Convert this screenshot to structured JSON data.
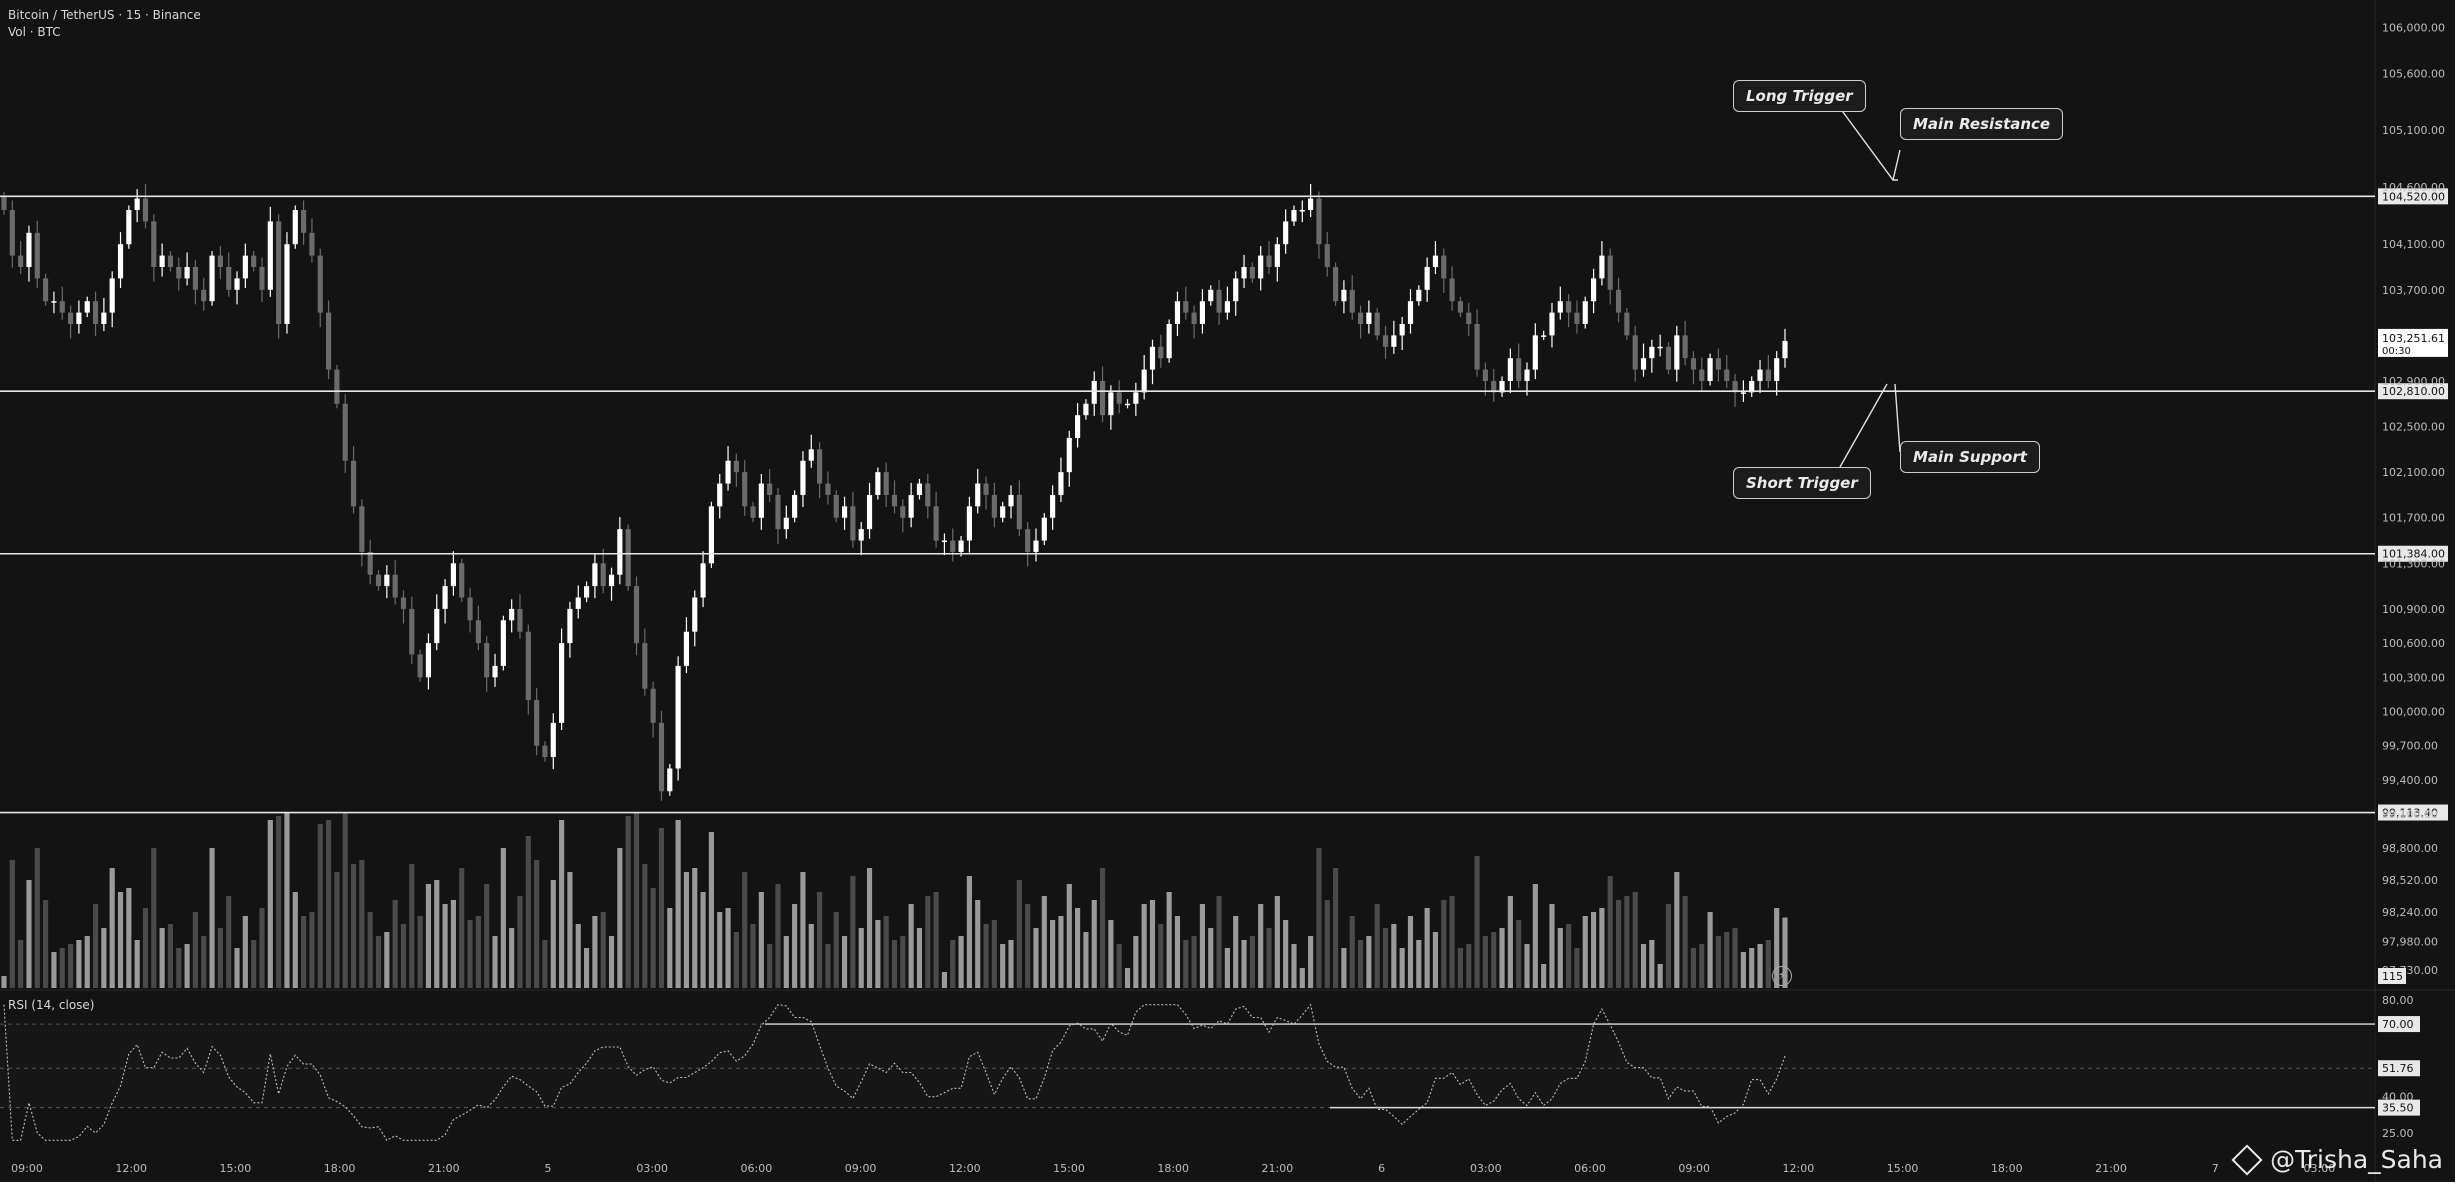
{
  "header": {
    "symbol_line": "Bitcoin / TetherUS · 15 · Binance",
    "volume_line": "Vol · BTC",
    "rsi_label": "RSI (14, close)"
  },
  "callouts": {
    "long_trigger": "Long Trigger",
    "main_resistance": "Main Resistance",
    "short_trigger": "Short Trigger",
    "main_support": "Main Support"
  },
  "watermark": "@Trisha_Saha",
  "colors": {
    "background": "#131313",
    "bull": "#ffffff",
    "bear": "#6b6b6b",
    "levels": "#e6e6e6"
  },
  "chart_data": {
    "type": "candlestick",
    "price_axis": {
      "ticks": [
        "106,000.00",
        "105,600.00",
        "105,100.00",
        "104,600.00",
        "104,100.00",
        "103,700.00",
        "103,300.00",
        "102,900.00",
        "102,500.00",
        "102,100.00",
        "101,700.00",
        "101,300.00",
        "100,900.00",
        "100,600.00",
        "100,300.00",
        "100,000.00",
        "99,700.00",
        "99,400.00",
        "99,100.00",
        "98,800.00",
        "98,520.00",
        "98,240.00",
        "97,980.00",
        "97,730.00"
      ],
      "range": [
        97600,
        106120
      ]
    },
    "levels": [
      {
        "label": "104,520.00",
        "price": 104520
      },
      {
        "label": "102,810.00",
        "price": 102810
      },
      {
        "label": "101,384.00",
        "price": 101384
      },
      {
        "label": "99,113.40",
        "price": 99113.4
      }
    ],
    "last_price": {
      "value": "103,251.61",
      "countdown": "00:30"
    },
    "volume_badge": "115",
    "time_axis": [
      "09:00",
      "12:00",
      "15:00",
      "18:00",
      "21:00",
      "5",
      "03:00",
      "06:00",
      "09:00",
      "12:00",
      "15:00",
      "18:00",
      "21:00",
      "6",
      "03:00",
      "06:00",
      "09:00",
      "12:00",
      "15:00",
      "18:00",
      "21:00",
      "7",
      "03:00"
    ],
    "candle_closes": [
      104400,
      104000,
      103900,
      104200,
      103800,
      103600,
      103600,
      103500,
      103400,
      103500,
      103600,
      103400,
      103500,
      103800,
      104100,
      104400,
      104500,
      104300,
      103900,
      104000,
      103900,
      103800,
      103900,
      103700,
      103600,
      104000,
      103900,
      103700,
      103800,
      104000,
      103900,
      103700,
      104300,
      103400,
      104100,
      104400,
      104200,
      104000,
      103500,
      103000,
      102700,
      102200,
      101800,
      101400,
      101200,
      101100,
      101200,
      101000,
      100900,
      100500,
      100300,
      100600,
      100900,
      101100,
      101300,
      101000,
      100800,
      100600,
      100300,
      100400,
      100800,
      100900,
      100700,
      100100,
      99700,
      99600,
      99900,
      100600,
      100900,
      101000,
      101100,
      101300,
      101100,
      101200,
      101600,
      101100,
      100600,
      100200,
      99900,
      99300,
      99500,
      100400,
      100700,
      101000,
      101300,
      101800,
      102000,
      102200,
      102100,
      101800,
      101700,
      102000,
      101900,
      101600,
      101700,
      101900,
      102200,
      102300,
      102000,
      101900,
      101700,
      101800,
      101500,
      101600,
      101900,
      102100,
      101900,
      101800,
      101700,
      101900,
      102000,
      101800,
      101500,
      101500,
      101400,
      101500,
      101800,
      102000,
      101900,
      101700,
      101800,
      101900,
      101600,
      101400,
      101500,
      101700,
      101900,
      102100,
      102400,
      102600,
      102700,
      102900,
      102600,
      102800,
      102700,
      102700,
      102800,
      103000,
      103200,
      103100,
      103400,
      103600,
      103500,
      103400,
      103600,
      103700,
      103500,
      103600,
      103800,
      103900,
      103800,
      104000,
      103900,
      104100,
      104300,
      104400,
      104400,
      104500,
      104100,
      103900,
      103600,
      103700,
      103500,
      103400,
      103500,
      103300,
      103200,
      103300,
      103400,
      103600,
      103700,
      103900,
      104000,
      103800,
      103600,
      103500,
      103400,
      103000,
      102900,
      102800,
      102900,
      103100,
      102900,
      103000,
      103300,
      103300,
      103500,
      103600,
      103500,
      103400,
      103600,
      103800,
      104000,
      103700,
      103500,
      103300,
      103000,
      103100,
      103200,
      103200,
      103000,
      103300,
      103100,
      103000,
      102900,
      103100,
      103000,
      102900,
      102800,
      102800,
      102900,
      103000,
      102900,
      103100,
      103251.61
    ],
    "rsi": {
      "levels": [
        70.0,
        51.76,
        35.5
      ],
      "labels": [
        "80.00",
        "70.00",
        "51.76",
        "40.00",
        "35.50",
        "25.00"
      ]
    }
  }
}
